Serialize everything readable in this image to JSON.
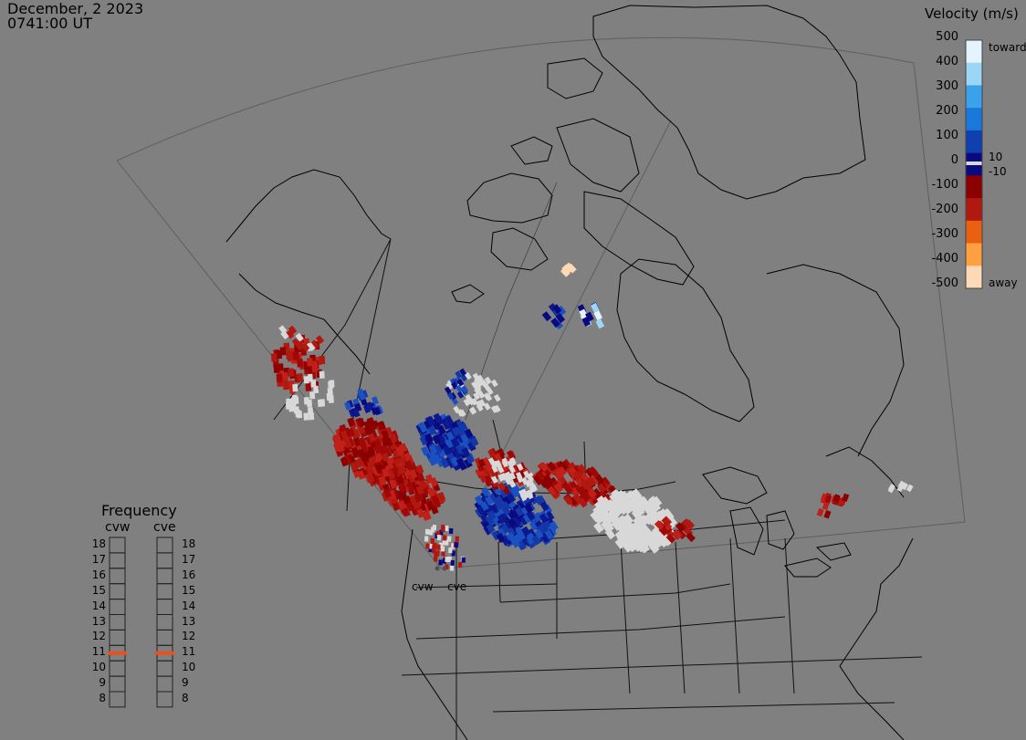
{
  "header": {
    "date": "December, 2 2023",
    "time": "0741:00 UT"
  },
  "colorbar": {
    "title": "Velocity (m/s)",
    "ticks": [
      "500",
      "400",
      "300",
      "200",
      "100",
      "0",
      "-100",
      "-200",
      "-300",
      "-400",
      "-500"
    ],
    "low_label_pos": "10",
    "low_label_neg": "-10",
    "toward_label": "toward",
    "away_label": "away",
    "colors": [
      "#ffd8b6",
      "#ffa040",
      "#e86010",
      "#b01810",
      "#8c0000",
      "#0a0a80",
      "#1040b0",
      "#1a78dc",
      "#3aa2ea",
      "#9cd6f6",
      "#e4f4ff"
    ],
    "ground_scatter_color": "#d8d8d8"
  },
  "frequency": {
    "title": "Frequency",
    "radars": [
      {
        "name": "cvw",
        "selected_mhz": 11
      },
      {
        "name": "cve",
        "selected_mhz": 11
      }
    ],
    "mhz_labels": [
      "18",
      "17",
      "16",
      "15",
      "14",
      "13",
      "12",
      "11",
      "10",
      "9",
      "8"
    ],
    "marker_color": "#e8501e"
  },
  "map": {
    "radar_sites": [
      {
        "name": "cvw"
      },
      {
        "name": "cve"
      }
    ]
  }
}
